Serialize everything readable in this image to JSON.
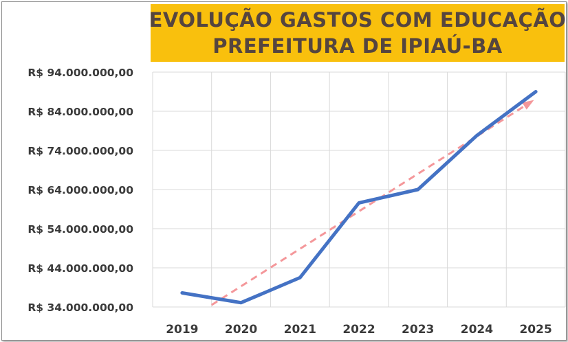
{
  "chart_data": {
    "type": "line",
    "title": "EVOLUÇÃO GASTOS COM EDUCAÇÃO",
    "subtitle": "PREFEITURA DE IPIAÚ-BA",
    "categories": [
      "2019",
      "2020",
      "2021",
      "2022",
      "2023",
      "2024",
      "2025"
    ],
    "series": [
      {
        "values": [
          37600000,
          35100000,
          41500000,
          60600000,
          64000000,
          77800000,
          89000000
        ],
        "color": "#4472c4"
      },
      {
        "values": [
          34500000,
          42000000,
          50000000,
          58000000,
          66000000,
          76000000,
          86500000
        ],
        "color": "#f4979a",
        "style": "dashed-trendline-arrow"
      }
    ],
    "ylim": [
      34000000,
      94000000
    ],
    "yticks": [
      34000000,
      44000000,
      54000000,
      64000000,
      74000000,
      84000000,
      94000000
    ],
    "ytick_labels": [
      "R$ 34.000.000,00",
      "R$ 44.000.000,00",
      "R$ 54.000.000,00",
      "R$ 64.000.000,00",
      "R$ 74.000.000,00",
      "R$ 84.000.000,00",
      "R$ 94.000.000,00"
    ],
    "grid": true,
    "legend": "none",
    "title_background": "#f9c00d",
    "title_color": "#55453f"
  }
}
